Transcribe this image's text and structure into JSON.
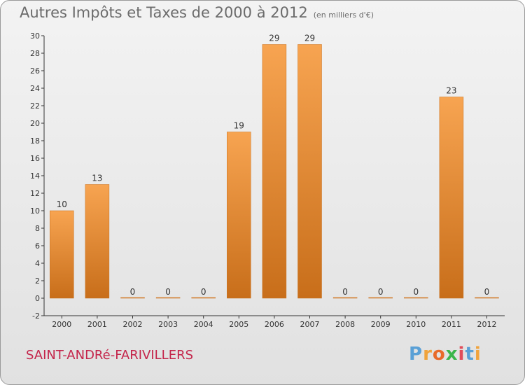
{
  "header": {
    "title": "Autres Impôts et Taxes de 2000 à 2012",
    "unit": "(en milliers d'€)"
  },
  "footer": {
    "place": "SAINT-ANDRé-FARIVILLERS",
    "logo": [
      "P",
      "r",
      "o",
      "x",
      "i",
      "t",
      "i"
    ]
  },
  "colors": {
    "bar_light": "#f7a451",
    "bar_dark": "#c86e1a",
    "logo": [
      "#5aa0d6",
      "#f0a33c",
      "#e86a2a",
      "#3ab54a",
      "#e14d5a",
      "#5aa0d6",
      "#f0a33c"
    ]
  },
  "chart_data": {
    "type": "bar",
    "title": "Autres Impôts et Taxes de 2000 à 2012",
    "subtitle": "(en milliers d'€)",
    "categories": [
      "2000",
      "2001",
      "2002",
      "2003",
      "2004",
      "2005",
      "2006",
      "2007",
      "2008",
      "2009",
      "2010",
      "2011",
      "2012"
    ],
    "values": [
      10,
      13,
      0,
      0,
      0,
      19,
      29,
      29,
      0,
      0,
      0,
      23,
      0
    ],
    "data_labels": [
      "10",
      "13",
      "0",
      "0",
      "0",
      "19",
      "29",
      "29",
      "0",
      "0",
      "0",
      "23",
      "0"
    ],
    "ylim": [
      -2,
      30
    ],
    "yticks": [
      -2,
      0,
      2,
      4,
      6,
      8,
      10,
      12,
      14,
      16,
      18,
      20,
      22,
      24,
      26,
      28,
      30
    ],
    "grid": false,
    "legend": "none"
  }
}
